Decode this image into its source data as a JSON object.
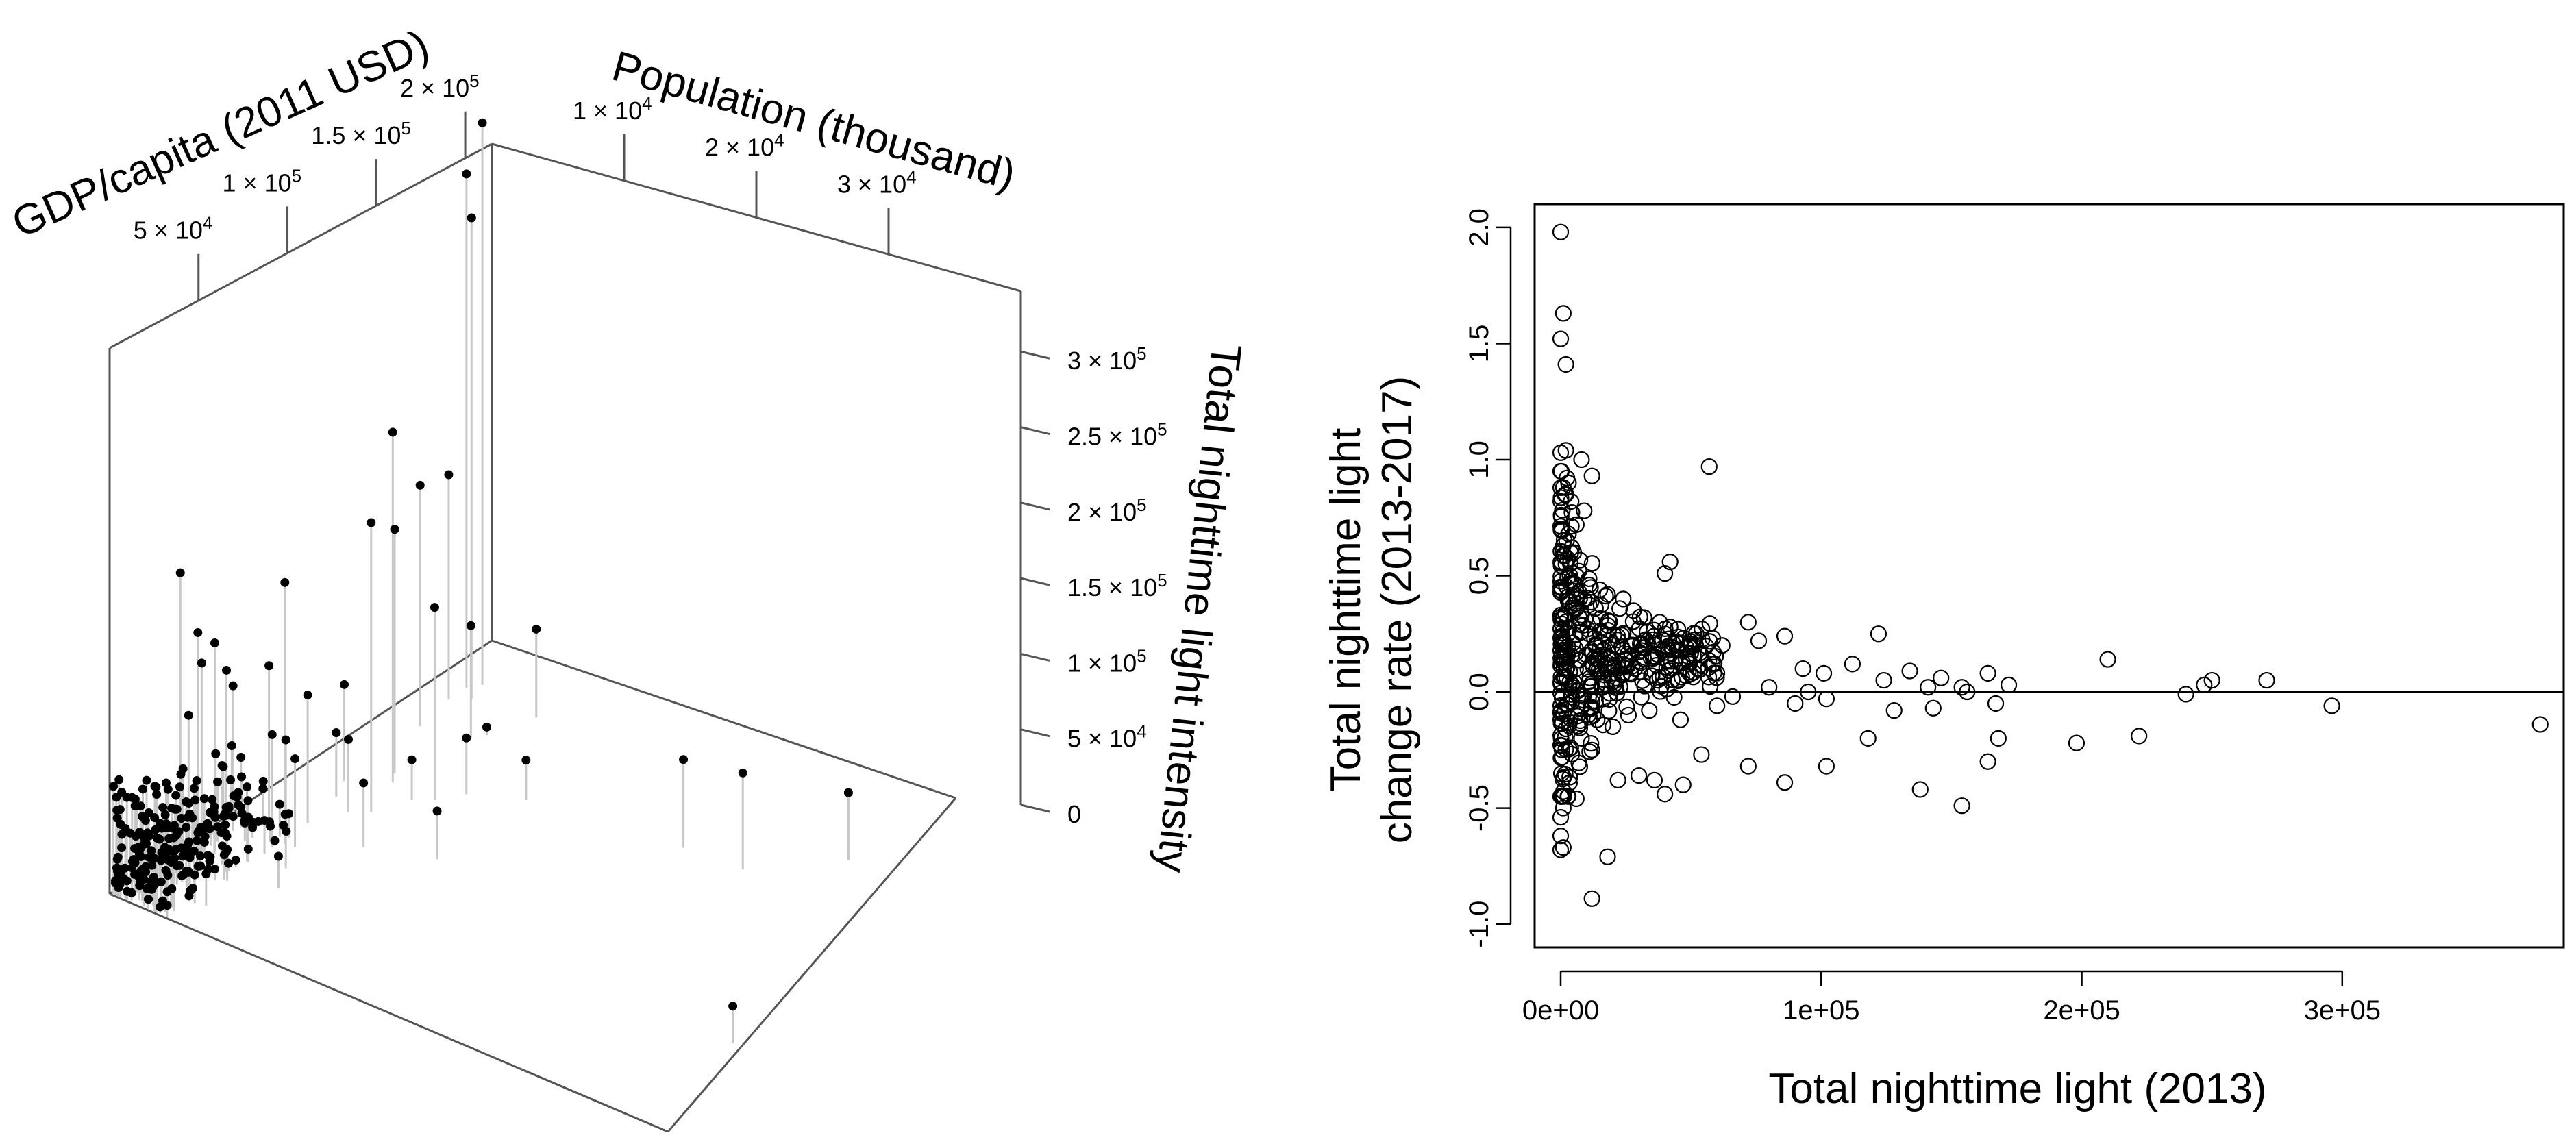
{
  "chart_data": [
    {
      "type": "scatter",
      "subtype": "3d-scatter-with-drop-lines",
      "x_axis": {
        "label": "GDP/capita (2011 USD)",
        "ticks": [
          {
            "value": 50000,
            "mant": "5",
            "exp": "4"
          },
          {
            "value": 100000,
            "mant": "1",
            "exp": "5"
          },
          {
            "value": 150000,
            "mant": "1.5",
            "exp": "5"
          },
          {
            "value": 200000,
            "mant": "2",
            "exp": "5"
          }
        ],
        "range": [
          0,
          215000
        ]
      },
      "y_axis": {
        "label": "Population (thousand)",
        "ticks": [
          {
            "value": 10000,
            "mant": "1",
            "exp": "4"
          },
          {
            "value": 20000,
            "mant": "2",
            "exp": "4"
          },
          {
            "value": 30000,
            "mant": "3",
            "exp": "4"
          }
        ],
        "range": [
          0,
          40000
        ]
      },
      "z_axis": {
        "label": "Total nighttime light intensity",
        "ticks": [
          {
            "value": 0,
            "mant": "0",
            "exp": ""
          },
          {
            "value": 50000,
            "mant": "5",
            "exp": "4"
          },
          {
            "value": 100000,
            "mant": "1",
            "exp": "5"
          },
          {
            "value": 150000,
            "mant": "1.5",
            "exp": "5"
          },
          {
            "value": 200000,
            "mant": "2",
            "exp": "5"
          },
          {
            "value": 250000,
            "mant": "2.5",
            "exp": "5"
          },
          {
            "value": 300000,
            "mant": "3",
            "exp": "5"
          }
        ],
        "range": [
          0,
          340000
        ]
      },
      "points": [
        [
          165000,
          6000,
          5000
        ],
        [
          150000,
          22000,
          55000
        ],
        [
          152000,
          26000,
          60000
        ],
        [
          180000,
          30000,
          42000
        ],
        [
          60000,
          37000,
          23000
        ],
        [
          120000,
          5000,
          218000
        ],
        [
          125000,
          4500,
          152000
        ],
        [
          155000,
          2500,
          150000
        ],
        [
          160000,
          5500,
          70000
        ],
        [
          40000,
          1500,
          120000
        ],
        [
          35000,
          1200,
          90000
        ],
        [
          45000,
          1800,
          130000
        ],
        [
          28000,
          1500,
          185000
        ],
        [
          52000,
          6000,
          80000
        ],
        [
          60000,
          4000,
          70000
        ],
        [
          70000,
          2500,
          100000
        ],
        [
          100000,
          3500,
          40000
        ],
        [
          110000,
          2800,
          60000
        ],
        [
          80000,
          8000,
          40000
        ],
        [
          130000,
          9000,
          35000
        ],
        [
          90000,
          12000,
          30000
        ],
        [
          140000,
          12000,
          25000
        ],
        [
          20000,
          1500,
          60000
        ],
        [
          15000,
          800,
          30000
        ],
        [
          25000,
          1500,
          40000
        ],
        [
          20000,
          3500,
          25000
        ],
        [
          40000,
          7000,
          20000
        ],
        [
          10000,
          2000,
          40000
        ],
        [
          60000,
          1200,
          90000
        ],
        [
          30000,
          2500,
          150000
        ],
        [
          75000,
          3000,
          150000
        ],
        [
          50000,
          2000,
          110000
        ],
        [
          80000,
          4000,
          80000
        ],
        [
          65000,
          5000,
          55000
        ],
        [
          95000,
          5000,
          45000
        ],
        [
          115000,
          7000,
          25000
        ],
        [
          185000,
          7000,
          55000
        ],
        [
          185000,
          2000,
          320000
        ],
        [
          180000,
          3000,
          300000
        ],
        [
          190000,
          2500,
          350000
        ],
        [
          175000,
          2000,
          140000
        ],
        [
          100000,
          6000,
          180000
        ],
        [
          120000,
          8000,
          120000
        ],
        [
          15000,
          5000,
          20000
        ]
      ],
      "cluster_seed": 7
    },
    {
      "type": "scatter",
      "xlabel": "Total nighttime light (2013)",
      "ylabel_lines": [
        "Total nighttime light",
        "change rate (2013-2017)"
      ],
      "xlim": [
        -10000,
        385000
      ],
      "ylim": [
        -1.1,
        2.1
      ],
      "x_ticks": [
        {
          "value": 0,
          "label": "0e+00"
        },
        {
          "value": 100000,
          "label": "1e+05"
        },
        {
          "value": 200000,
          "label": "2e+05"
        },
        {
          "value": 300000,
          "label": "3e+05"
        }
      ],
      "y_ticks": [
        {
          "value": -1.0,
          "label": "-1.0"
        },
        {
          "value": -0.5,
          "label": "-0.5"
        },
        {
          "value": 0.0,
          "label": "0.0"
        },
        {
          "value": 0.5,
          "label": "0.5"
        },
        {
          "value": 1.0,
          "label": "1.0"
        },
        {
          "value": 1.5,
          "label": "1.5"
        },
        {
          "value": 2.0,
          "label": "2.0"
        }
      ],
      "hline": 0,
      "points": [
        [
          0,
          1.98
        ],
        [
          1000,
          1.63
        ],
        [
          0,
          1.52
        ],
        [
          2000,
          1.41
        ],
        [
          0,
          1.03
        ],
        [
          2000,
          1.04
        ],
        [
          8000,
          1.0
        ],
        [
          12000,
          0.93
        ],
        [
          3000,
          0.9
        ],
        [
          1000,
          0.88
        ],
        [
          2000,
          0.85
        ],
        [
          4000,
          0.82
        ],
        [
          9000,
          0.78
        ],
        [
          6000,
          0.72
        ],
        [
          3000,
          0.68
        ],
        [
          1000,
          0.63
        ],
        [
          5000,
          0.6
        ],
        [
          2000,
          0.55
        ],
        [
          7000,
          0.52
        ],
        [
          4000,
          0.48
        ],
        [
          11000,
          0.46
        ],
        [
          15000,
          0.44
        ],
        [
          18000,
          0.42
        ],
        [
          24000,
          0.4
        ],
        [
          28000,
          0.35
        ],
        [
          32000,
          0.32
        ],
        [
          38000,
          0.3
        ],
        [
          42000,
          0.28
        ],
        [
          45000,
          0.27
        ],
        [
          52000,
          0.25
        ],
        [
          62000,
          0.2
        ],
        [
          72000,
          0.3
        ],
        [
          76000,
          0.22
        ],
        [
          86000,
          0.24
        ],
        [
          93000,
          0.1
        ],
        [
          101000,
          0.08
        ],
        [
          112000,
          0.12
        ],
        [
          122000,
          0.25
        ],
        [
          124000,
          0.05
        ],
        [
          134000,
          0.09
        ],
        [
          141000,
          0.02
        ],
        [
          146000,
          0.06
        ],
        [
          154000,
          0.02
        ],
        [
          164000,
          0.08
        ],
        [
          167000,
          -0.05
        ],
        [
          172000,
          0.03
        ],
        [
          42000,
          0.56
        ],
        [
          40000,
          0.51
        ],
        [
          57000,
          0.97
        ],
        [
          210000,
          0.14
        ],
        [
          240000,
          -0.01
        ],
        [
          247000,
          0.03
        ],
        [
          250000,
          0.05
        ],
        [
          271000,
          0.05
        ],
        [
          296000,
          -0.06
        ],
        [
          376000,
          -0.14
        ],
        [
          198000,
          -0.22
        ],
        [
          222000,
          -0.19
        ],
        [
          168000,
          -0.2
        ],
        [
          164000,
          -0.3
        ],
        [
          154000,
          -0.49
        ],
        [
          138000,
          -0.42
        ],
        [
          118000,
          -0.2
        ],
        [
          102000,
          -0.32
        ],
        [
          86000,
          -0.39
        ],
        [
          72000,
          -0.32
        ],
        [
          54000,
          -0.27
        ],
        [
          47000,
          -0.4
        ],
        [
          40000,
          -0.44
        ],
        [
          36000,
          -0.38
        ],
        [
          30000,
          -0.36
        ],
        [
          22000,
          -0.38
        ],
        [
          12000,
          -0.25
        ],
        [
          6000,
          -0.46
        ],
        [
          1000,
          -0.5
        ],
        [
          0,
          -0.54
        ],
        [
          0,
          -0.62
        ],
        [
          1000,
          -0.67
        ],
        [
          0,
          -0.68
        ],
        [
          18000,
          -0.71
        ],
        [
          12000,
          -0.89
        ],
        [
          8000,
          -0.2
        ],
        [
          14000,
          -0.12
        ],
        [
          20000,
          -0.15
        ],
        [
          26000,
          -0.1
        ],
        [
          34000,
          -0.08
        ],
        [
          46000,
          -0.12
        ],
        [
          60000,
          -0.06
        ],
        [
          66000,
          -0.02
        ],
        [
          80000,
          0.02
        ],
        [
          90000,
          -0.05
        ],
        [
          95000,
          0.0
        ],
        [
          102000,
          -0.03
        ],
        [
          128000,
          -0.08
        ],
        [
          143000,
          -0.07
        ],
        [
          156000,
          0.0
        ]
      ],
      "cluster_seed": 11
    }
  ]
}
